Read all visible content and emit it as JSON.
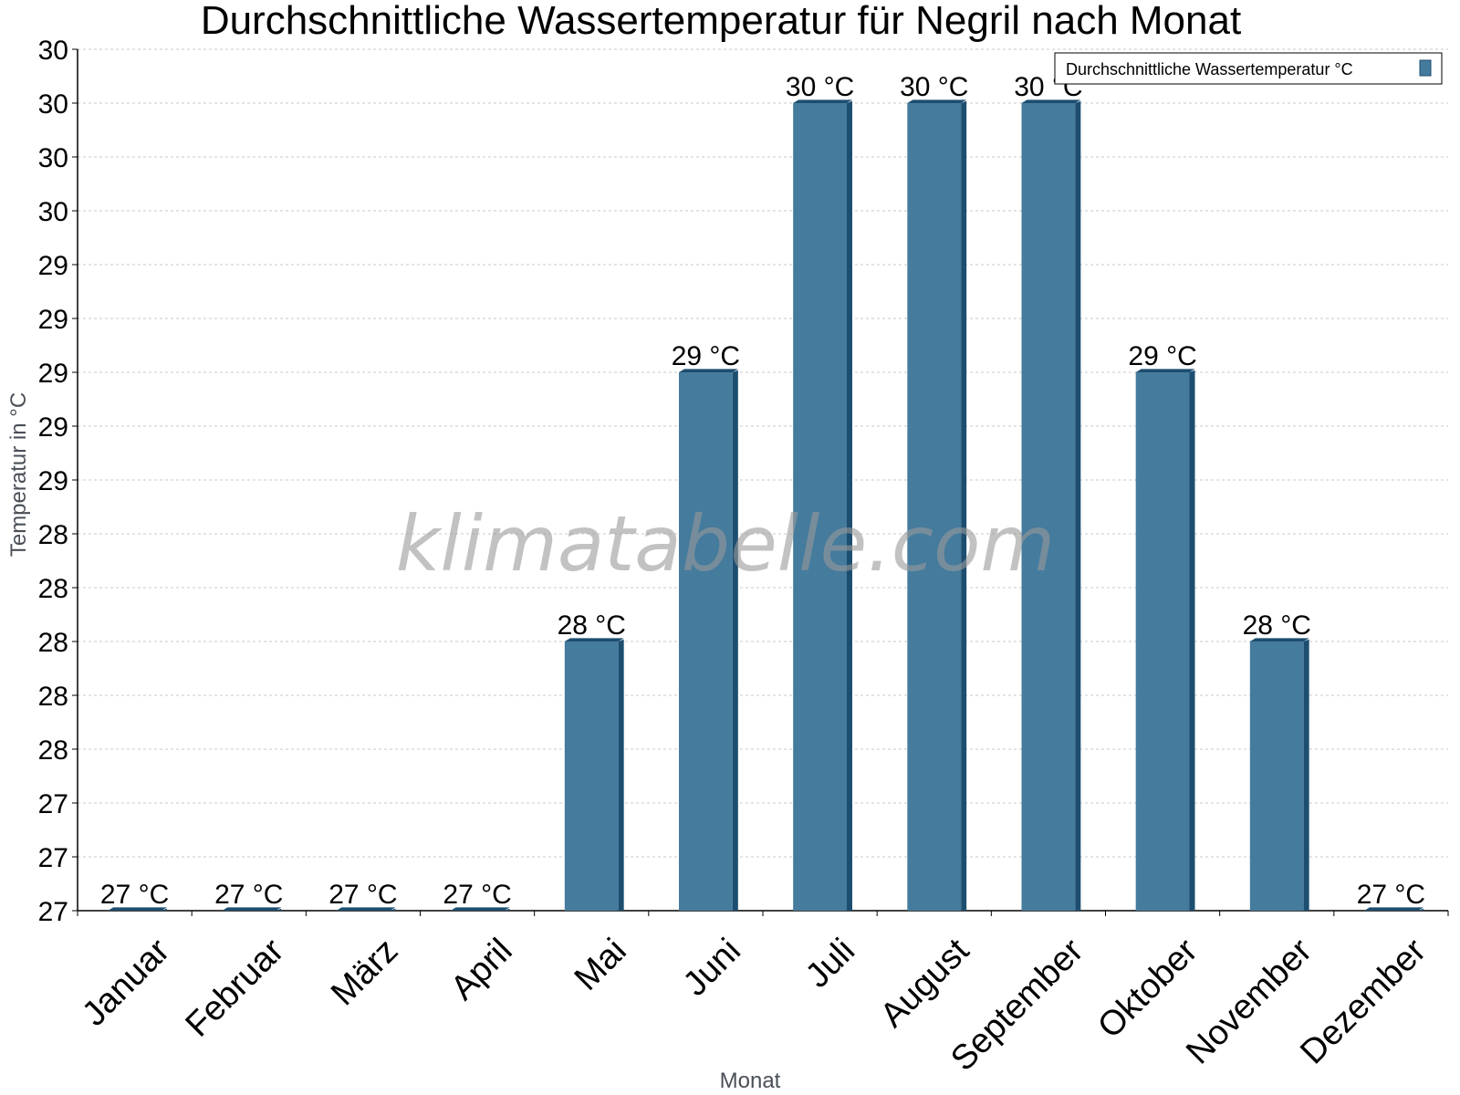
{
  "chart_data": {
    "type": "bar",
    "title": "Durchschnittliche Wassertemperatur für Negril nach Monat",
    "xlabel": "Monat",
    "ylabel": "Temperatur in °C",
    "watermark": "klimatabelle.com",
    "categories": [
      "Januar",
      "Februar",
      "März",
      "April",
      "Mai",
      "Juni",
      "Juli",
      "August",
      "September",
      "Oktober",
      "November",
      "Dezember"
    ],
    "series": [
      {
        "name": "Durchschnittliche Wassertemperatur °C",
        "values": [
          27,
          27,
          27,
          27,
          28,
          29,
          30,
          30,
          30,
          29,
          28,
          27
        ],
        "labels": [
          "27 °C",
          "27 °C",
          "27 °C",
          "27 °C",
          "28 °C",
          "29 °C",
          "30 °C",
          "30 °C",
          "30 °C",
          "29 °C",
          "28 °C",
          "27 °C"
        ],
        "color": "#457b9d",
        "edge_color": "#1d4e70"
      }
    ],
    "ylim": [
      27,
      30.2
    ],
    "yticks": [
      27,
      27.2,
      27.4,
      27.6,
      27.8,
      28,
      28.2,
      28.4,
      28.6,
      28.8,
      29,
      29.2,
      29.4,
      29.6,
      29.8,
      30,
      30.2
    ],
    "ytick_labels": [
      "27",
      "27",
      "27",
      "28",
      "28",
      "28",
      "28",
      "28",
      "29",
      "29",
      "29",
      "29",
      "29",
      "30",
      "30",
      "30",
      "30"
    ],
    "grid": true,
    "legend_position": "top-right"
  }
}
